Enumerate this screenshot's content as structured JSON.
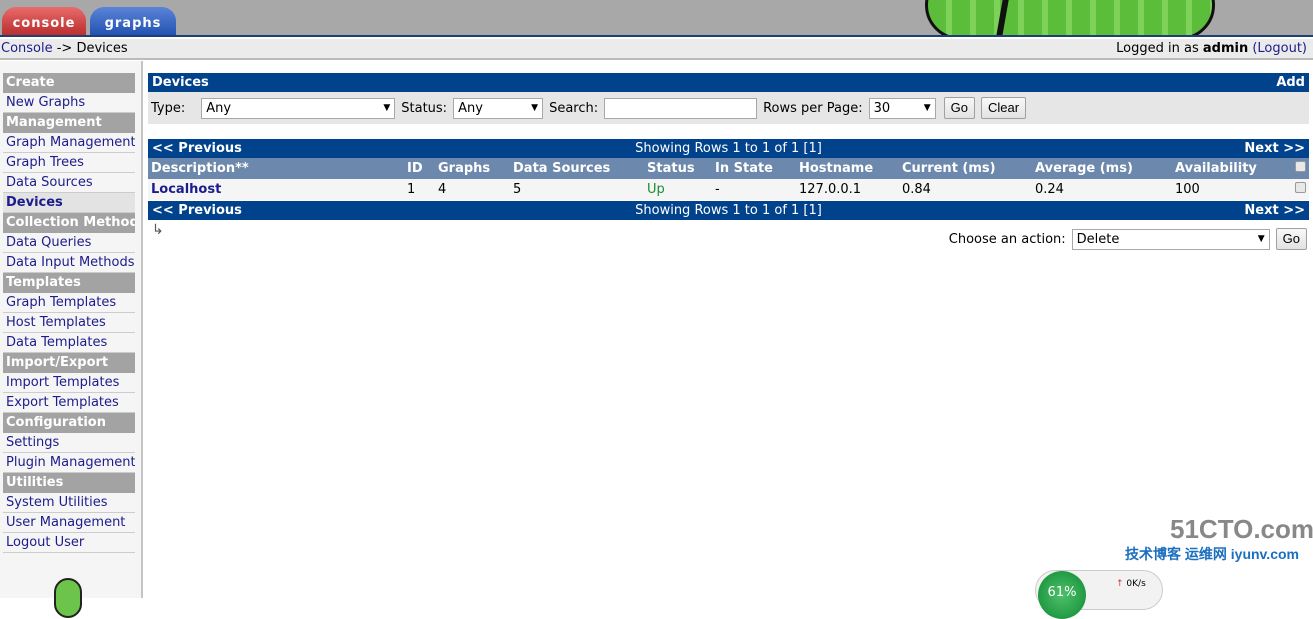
{
  "tabs": [
    {
      "label": "console"
    },
    {
      "label": "graphs"
    }
  ],
  "breadcrumb": {
    "root": "Console",
    "sep": " -> ",
    "current": "Devices"
  },
  "login": {
    "prefix": "Logged in as ",
    "user": "admin",
    "logout": "(Logout)"
  },
  "sidebar": [
    {
      "type": "header",
      "label": "Create"
    },
    {
      "type": "item",
      "label": "New Graphs"
    },
    {
      "type": "header",
      "label": "Management"
    },
    {
      "type": "item",
      "label": "Graph Management"
    },
    {
      "type": "item",
      "label": "Graph Trees"
    },
    {
      "type": "item",
      "label": "Data Sources"
    },
    {
      "type": "item",
      "label": "Devices",
      "selected": true
    },
    {
      "type": "header",
      "label": "Collection Methods"
    },
    {
      "type": "item",
      "label": "Data Queries"
    },
    {
      "type": "item",
      "label": "Data Input Methods"
    },
    {
      "type": "header",
      "label": "Templates"
    },
    {
      "type": "item",
      "label": "Graph Templates"
    },
    {
      "type": "item",
      "label": "Host Templates"
    },
    {
      "type": "item",
      "label": "Data Templates"
    },
    {
      "type": "header",
      "label": "Import/Export"
    },
    {
      "type": "item",
      "label": "Import Templates"
    },
    {
      "type": "item",
      "label": "Export Templates"
    },
    {
      "type": "header",
      "label": "Configuration"
    },
    {
      "type": "item",
      "label": "Settings"
    },
    {
      "type": "item",
      "label": "Plugin Management"
    },
    {
      "type": "header",
      "label": "Utilities"
    },
    {
      "type": "item",
      "label": "System Utilities"
    },
    {
      "type": "item",
      "label": "User Management"
    },
    {
      "type": "item",
      "label": "Logout User"
    }
  ],
  "devices": {
    "title": "Devices",
    "add": "Add"
  },
  "filter": {
    "type_label": "Type:",
    "type_value": "Any",
    "status_label": "Status:",
    "status_value": "Any",
    "search_label": "Search:",
    "search_value": "",
    "rows_label": "Rows per Page:",
    "rows_value": "30",
    "go": "Go",
    "clear": "Clear"
  },
  "nav": {
    "prev": "<< Previous",
    "showing": "Showing Rows 1 to 1 of 1 [1]",
    "next": "Next >>"
  },
  "table": {
    "columns": [
      "Description**",
      "ID",
      "Graphs",
      "Data Sources",
      "Status",
      "In State",
      "Hostname",
      "Current (ms)",
      "Average (ms)",
      "Availability"
    ],
    "rows": [
      [
        "Localhost",
        "1",
        "4",
        "5",
        "Up",
        "-",
        "127.0.0.1",
        "0.84",
        "0.24",
        "100"
      ]
    ]
  },
  "action": {
    "label": "Choose an action:",
    "value": "Delete",
    "go": "Go"
  },
  "colors": {
    "bar": "#00438c",
    "header": "#6d88ad",
    "status_up": "#198e32",
    "link": "#1c1c8c"
  },
  "overlay": {
    "percent": "61%",
    "up": "0K/s",
    "watermark": "51CTO.com",
    "watermark2": "技术博客 运维网 iyunv.com"
  }
}
